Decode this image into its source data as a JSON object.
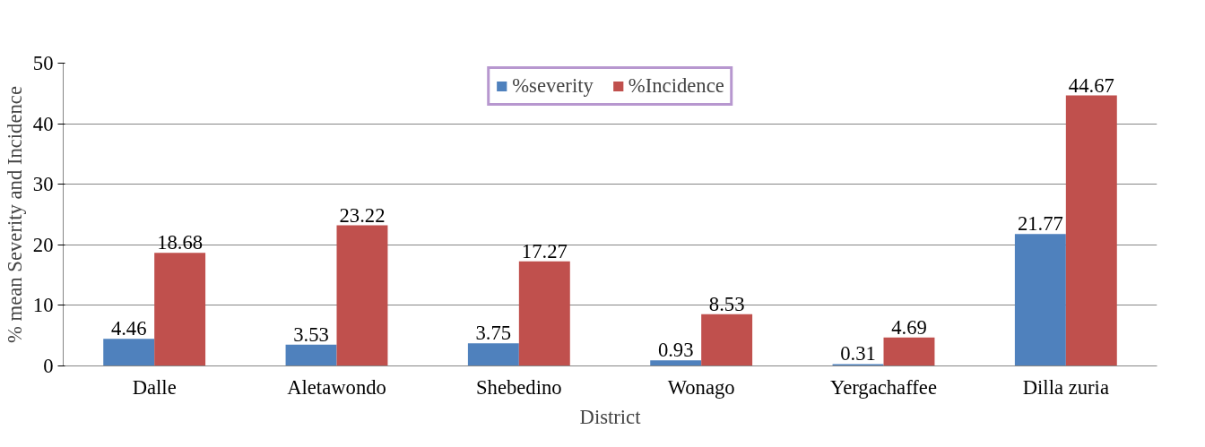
{
  "chart_data": {
    "type": "bar",
    "xlabel": "District",
    "ylabel": "% mean Severity and Incidence",
    "categories": [
      "Dalle",
      "Aletawondo",
      "Shebedino",
      "Wonago",
      "Yergachaffee",
      "Dilla zuria"
    ],
    "series": [
      {
        "name": "%severity",
        "color": "#4f81bd",
        "values": [
          4.46,
          3.53,
          3.75,
          0.93,
          0.31,
          21.77
        ]
      },
      {
        "name": "%Incidence",
        "color": "#c0504d",
        "values": [
          18.68,
          23.22,
          17.27,
          8.53,
          4.69,
          44.67
        ]
      }
    ],
    "ylim": [
      0,
      50
    ],
    "yticks": [
      0,
      10,
      20,
      30,
      40,
      50
    ],
    "grid": "y",
    "legend": "top",
    "data_labels": true
  }
}
